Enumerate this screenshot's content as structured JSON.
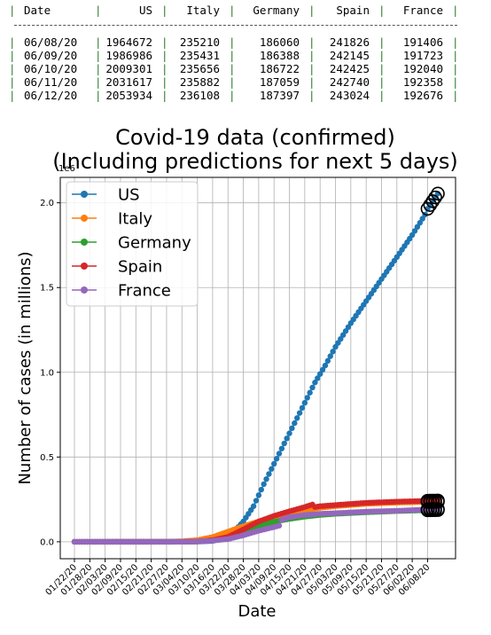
{
  "table": {
    "headers": [
      "Date",
      "US",
      "Italy",
      "Germany",
      "Spain",
      "France"
    ],
    "rows": [
      [
        "06/08/20",
        "1964672",
        "235210",
        "186060",
        "241826",
        "191406"
      ],
      [
        "06/09/20",
        "1986986",
        "235431",
        "186388",
        "242145",
        "191723"
      ],
      [
        "06/10/20",
        "2009301",
        "235656",
        "186722",
        "242425",
        "192040"
      ],
      [
        "06/11/20",
        "2031617",
        "235882",
        "187059",
        "242740",
        "192358"
      ],
      [
        "06/12/20",
        "2053934",
        "236108",
        "187397",
        "243024",
        "192676"
      ]
    ]
  },
  "chart_data": {
    "type": "line",
    "title": "Covid-19 data (confirmed)",
    "subtitle": "(Including predictions for next 5 days)",
    "xlabel": "Date",
    "ylabel": "Number of cases (in millions)",
    "y_offset_label": "1e6",
    "ylim": [
      -0.1,
      2.15
    ],
    "yticks": [
      0.0,
      0.5,
      1.0,
      1.5,
      2.0
    ],
    "ytick_labels": [
      "0.0",
      "0.5",
      "1.0",
      "1.5",
      "2.0"
    ],
    "x_start": "01/22/20",
    "x_end": "06/12/20",
    "xtick_labels": [
      "01/22/20",
      "01/28/20",
      "02/03/20",
      "02/09/20",
      "02/15/20",
      "02/21/20",
      "02/27/20",
      "03/04/20",
      "03/10/20",
      "03/16/20",
      "03/22/20",
      "03/28/20",
      "04/03/20",
      "04/09/20",
      "04/15/20",
      "04/21/20",
      "04/27/20",
      "05/03/20",
      "05/09/20",
      "05/15/20",
      "05/21/20",
      "05/27/20",
      "06/02/20",
      "06/08/20"
    ],
    "grid": true,
    "legend_position": "top-left",
    "prediction_dates": [
      "06/08/20",
      "06/09/20",
      "06/10/20",
      "06/11/20",
      "06/12/20"
    ],
    "series": [
      {
        "name": "US",
        "color": "#1f77b4",
        "points": [
          [
            "01/22/20",
            0
          ],
          [
            "02/29/20",
            0.0001
          ],
          [
            "03/10/20",
            0.001
          ],
          [
            "03/16/20",
            0.005
          ],
          [
            "03/20/20",
            0.019
          ],
          [
            "03/24/20",
            0.054
          ],
          [
            "03/28/20",
            0.12
          ],
          [
            "04/01/20",
            0.21
          ],
          [
            "04/05/20",
            0.34
          ],
          [
            "04/09/20",
            0.46
          ],
          [
            "04/13/20",
            0.58
          ],
          [
            "04/17/20",
            0.7
          ],
          [
            "04/21/20",
            0.82
          ],
          [
            "04/25/20",
            0.94
          ],
          [
            "04/29/20",
            1.04
          ],
          [
            "05/03/20",
            1.15
          ],
          [
            "05/09/20",
            1.29
          ],
          [
            "05/15/20",
            1.42
          ],
          [
            "05/21/20",
            1.55
          ],
          [
            "05/27/20",
            1.68
          ],
          [
            "06/02/20",
            1.81
          ],
          [
            "06/07/20",
            1.93
          ]
        ],
        "predictions": [
          1964672,
          1986986,
          2009301,
          2031617,
          2053934
        ]
      },
      {
        "name": "Italy",
        "color": "#ff7f0e",
        "points": [
          [
            "01/22/20",
            0
          ],
          [
            "02/21/20",
            2e-05
          ],
          [
            "02/27/20",
            0.00065
          ],
          [
            "03/04/20",
            0.0031
          ],
          [
            "03/10/20",
            0.01
          ],
          [
            "03/16/20",
            0.028
          ],
          [
            "03/22/20",
            0.06
          ],
          [
            "03/28/20",
            0.092
          ],
          [
            "04/03/20",
            0.12
          ],
          [
            "04/09/20",
            0.143
          ],
          [
            "04/15/20",
            0.166
          ],
          [
            "04/21/20",
            0.184
          ],
          [
            "04/27/20",
            0.2
          ],
          [
            "05/03/20",
            0.21
          ],
          [
            "05/15/20",
            0.224
          ],
          [
            "05/27/20",
            0.231
          ],
          [
            "06/07/20",
            0.235
          ]
        ],
        "predictions": [
          235210,
          235431,
          235656,
          235882,
          236108
        ]
      },
      {
        "name": "Germany",
        "color": "#2ca02c",
        "points": [
          [
            "01/22/20",
            0
          ],
          [
            "02/27/20",
            3e-05
          ],
          [
            "03/04/20",
            0.0003
          ],
          [
            "03/10/20",
            0.0015
          ],
          [
            "03/16/20",
            0.0073
          ],
          [
            "03/22/20",
            0.025
          ],
          [
            "03/28/20",
            0.058
          ],
          [
            "04/03/20",
            0.092
          ],
          [
            "04/09/20",
            0.118
          ],
          [
            "04/15/20",
            0.135
          ],
          [
            "04/21/20",
            0.148
          ],
          [
            "04/27/20",
            0.158
          ],
          [
            "05/03/20",
            0.165
          ],
          [
            "05/15/20",
            0.174
          ],
          [
            "05/27/20",
            0.181
          ],
          [
            "06/07/20",
            0.186
          ]
        ],
        "predictions": [
          186060,
          186388,
          186722,
          187059,
          187397
        ]
      },
      {
        "name": "Spain",
        "color": "#d62728",
        "points": [
          [
            "01/22/20",
            0
          ],
          [
            "02/27/20",
            2e-05
          ],
          [
            "03/04/20",
            0.0002
          ],
          [
            "03/10/20",
            0.0017
          ],
          [
            "03/16/20",
            0.0099
          ],
          [
            "03/22/20",
            0.029
          ],
          [
            "03/28/20",
            0.073
          ],
          [
            "04/03/20",
            0.12
          ],
          [
            "04/09/20",
            0.153
          ],
          [
            "04/15/20",
            0.18
          ],
          [
            "04/21/20",
            0.205
          ],
          [
            "04/24/20",
            0.22
          ],
          [
            "04/25/20",
            0.205
          ],
          [
            "04/27/20",
            0.21
          ],
          [
            "05/03/20",
            0.217
          ],
          [
            "05/15/20",
            0.23
          ],
          [
            "05/27/20",
            0.237
          ],
          [
            "06/07/20",
            0.241
          ]
        ],
        "predictions": [
          241826,
          242145,
          242425,
          242740,
          243024
        ]
      },
      {
        "name": "France",
        "color": "#9467bd",
        "points": [
          [
            "01/22/20",
            0
          ],
          [
            "02/27/20",
            4e-05
          ],
          [
            "03/04/20",
            0.0003
          ],
          [
            "03/10/20",
            0.0018
          ],
          [
            "03/16/20",
            0.0067
          ],
          [
            "03/22/20",
            0.016
          ],
          [
            "03/28/20",
            0.038
          ],
          [
            "04/03/20",
            0.065
          ],
          [
            "04/09/20",
            0.087
          ],
          [
            "04/11/20",
            0.095
          ],
          [
            "04/12/20",
            0.13
          ],
          [
            "04/15/20",
            0.145
          ],
          [
            "04/21/20",
            0.158
          ],
          [
            "04/27/20",
            0.165
          ],
          [
            "05/03/20",
            0.169
          ],
          [
            "05/15/20",
            0.178
          ],
          [
            "05/27/20",
            0.183
          ],
          [
            "06/07/20",
            0.19
          ]
        ],
        "predictions": [
          191406,
          191723,
          192040,
          192358,
          192676
        ]
      }
    ]
  }
}
